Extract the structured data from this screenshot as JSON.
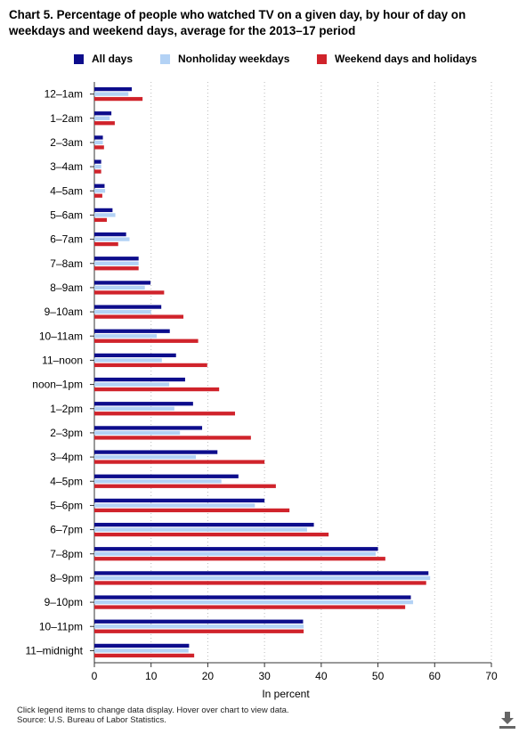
{
  "title_text": "Chart 5. Percentage of people who watched TV on a given day, by hour of day on weekdays and weekend days, average for the 2013–17 period",
  "note_line1": "Click legend items to change data display. Hover over chart to view data.",
  "note_line2": "Source: U.S. Bureau of Labor Statistics.",
  "download_icon": "download-icon",
  "chart_data": {
    "type": "bar",
    "orientation": "horizontal",
    "title": "Chart 5. Percentage of people who watched TV on a given day, by hour of day on weekdays and weekend days, average for the 2013–17 period",
    "xlabel": "In percent",
    "ylabel": "",
    "xlim": [
      0,
      70
    ],
    "xticks": [
      0,
      10,
      20,
      30,
      40,
      50,
      60,
      70
    ],
    "grid": "vertical dotted",
    "legend_position": "top",
    "categories": [
      "12–1am",
      "1–2am",
      "2–3am",
      "3–4am",
      "4–5am",
      "5–6am",
      "6–7am",
      "7–8am",
      "8–9am",
      "9–10am",
      "10–11am",
      "11–noon",
      "noon–1pm",
      "1–2pm",
      "2–3pm",
      "3–4pm",
      "4–5pm",
      "5–6pm",
      "6–7pm",
      "7–8pm",
      "8–9pm",
      "9–10pm",
      "10–11pm",
      "11–midnight"
    ],
    "series": [
      {
        "name": "All days",
        "color": "#0d0d8c",
        "values": [
          6.6,
          3.0,
          1.5,
          1.2,
          1.8,
          3.2,
          5.6,
          7.8,
          9.9,
          11.8,
          13.3,
          14.4,
          16.0,
          17.4,
          19.0,
          21.7,
          25.4,
          30.0,
          38.7,
          50.0,
          58.9,
          55.8,
          36.8,
          16.7
        ]
      },
      {
        "name": "Nonholiday weekdays",
        "color": "#b3d2f5",
        "values": [
          6.0,
          2.7,
          1.5,
          1.2,
          1.9,
          3.7,
          6.2,
          7.8,
          8.9,
          10.0,
          11.0,
          11.9,
          13.2,
          14.1,
          15.1,
          17.9,
          22.4,
          28.3,
          37.5,
          49.6,
          59.2,
          56.2,
          36.9,
          16.6
        ]
      },
      {
        "name": "Weekend days and holidays",
        "color": "#d0232b",
        "values": [
          8.5,
          3.6,
          1.7,
          1.2,
          1.4,
          2.2,
          4.2,
          7.8,
          12.3,
          15.7,
          18.3,
          19.9,
          22.0,
          24.8,
          27.6,
          30.0,
          32.0,
          34.4,
          41.3,
          51.3,
          58.5,
          54.8,
          36.9,
          17.6
        ]
      }
    ]
  }
}
